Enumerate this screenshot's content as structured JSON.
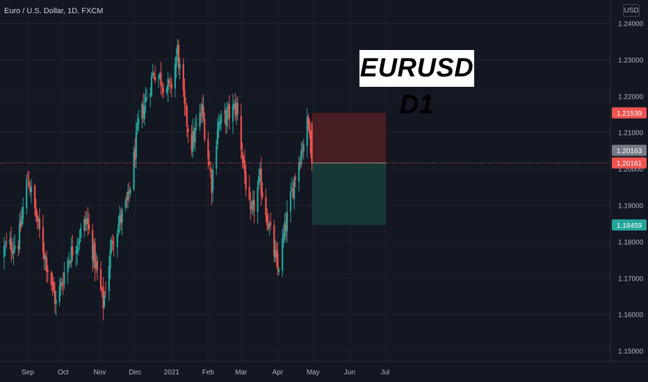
{
  "header": {
    "symbol": "Euro / U.S. Dollar, 1D, FXCM",
    "currency": "USD"
  },
  "annotation": {
    "title": "EURUSD D1"
  },
  "colors": {
    "background": "#131722",
    "up": "#26a69a",
    "down": "#ef5350",
    "grid": "#1e222d",
    "axis_text": "#b2b5be",
    "stop_zone": "#4a1f24",
    "target_zone": "#173a39"
  },
  "chart_data": {
    "type": "candlestick",
    "title": "",
    "xlabel": "",
    "ylabel": "",
    "ylim": [
      1.1445,
      1.2425
    ],
    "x_ticks": [
      "Sep",
      "Oct",
      "Nov",
      "Dec",
      "2021",
      "Feb",
      "Mar",
      "Apr",
      "May",
      "Jun",
      "Jul"
    ],
    "y_ticks": [
      "1.24000",
      "1.23000",
      "1.22000",
      "1.21000",
      "1.20000",
      "1.19000",
      "1.18000",
      "1.17000",
      "1.16000",
      "1.15000"
    ],
    "y_tick_values": [
      1.24,
      1.23,
      1.22,
      1.21,
      1.2,
      1.19,
      1.18,
      1.17,
      1.16,
      1.15
    ],
    "anchors": [
      [
        "2020-08-12",
        1.178
      ],
      [
        "2020-08-24",
        1.18
      ],
      [
        "2020-09-01",
        1.198
      ],
      [
        "2020-09-10",
        1.184
      ],
      [
        "2020-09-25",
        1.163
      ],
      [
        "2020-10-05",
        1.175
      ],
      [
        "2020-10-21",
        1.186
      ],
      [
        "2020-11-04",
        1.163
      ],
      [
        "2020-11-12",
        1.181
      ],
      [
        "2020-11-25",
        1.191
      ],
      [
        "2020-12-04",
        1.212
      ],
      [
        "2020-12-17",
        1.227
      ],
      [
        "2020-12-31",
        1.2215
      ],
      [
        "2021-01-06",
        1.2325
      ],
      [
        "2021-01-12",
        1.216
      ],
      [
        "2021-01-18",
        1.207
      ],
      [
        "2021-01-27",
        1.216
      ],
      [
        "2021-02-04",
        1.196
      ],
      [
        "2021-02-09",
        1.212
      ],
      [
        "2021-02-25",
        1.217
      ],
      [
        "2021-03-09",
        1.186
      ],
      [
        "2021-03-17",
        1.197
      ],
      [
        "2021-04-01",
        1.172
      ],
      [
        "2021-04-06",
        1.181
      ],
      [
        "2021-04-15",
        1.197
      ],
      [
        "2021-04-26",
        1.212
      ],
      [
        "2021-04-28",
        1.2124
      ],
      [
        "2021-04-30",
        1.2016
      ]
    ],
    "current_price": {
      "label": "1.20163",
      "value": 1.20163
    },
    "position": {
      "stop_loss": {
        "label": "1.21539",
        "value": 1.21539
      },
      "entry": {
        "label": "1.20161",
        "value": 1.20161
      },
      "take_profit": {
        "label": "1.18459",
        "value": 1.18459
      },
      "start_date": "2021-04-30",
      "end_date": "2021-07-02"
    }
  }
}
